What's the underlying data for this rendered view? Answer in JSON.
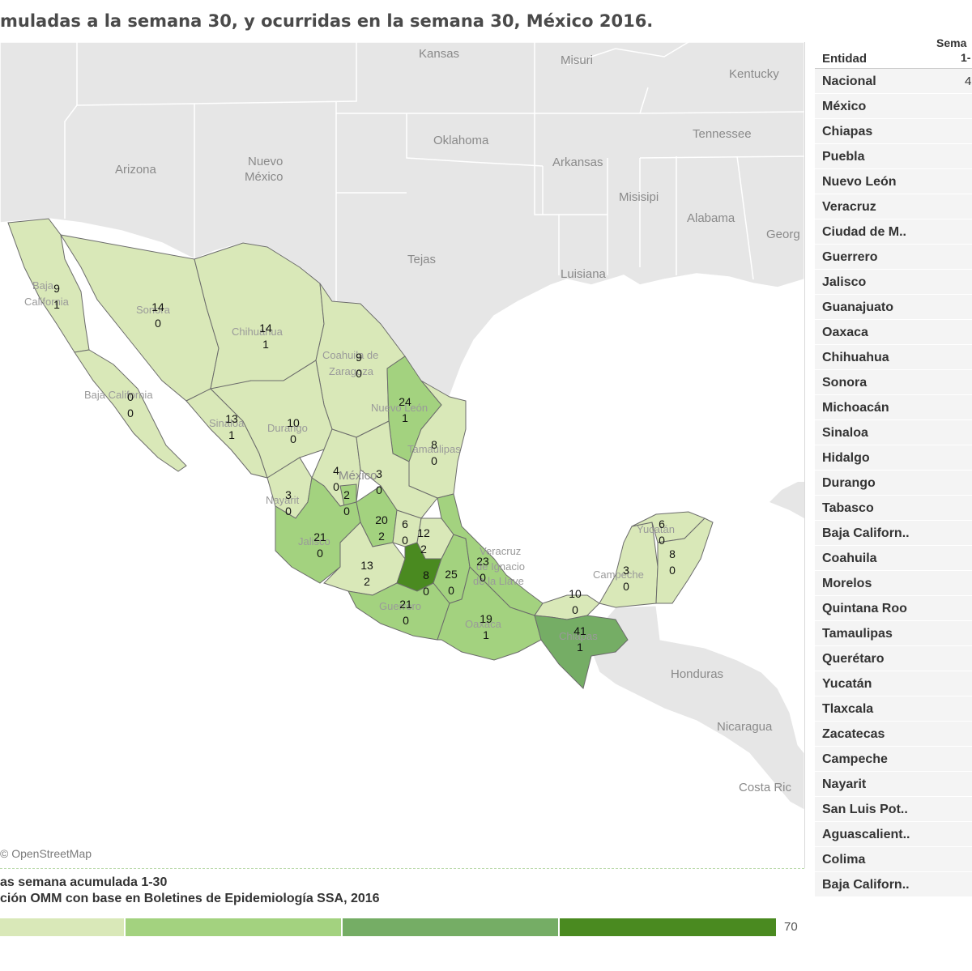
{
  "title": "muladas a la semana 30, y ocurridas en la semana 30, México 2016.",
  "map": {
    "attribution": "© OpenStreetMap",
    "country_labels": {
      "mexico": "México",
      "honduras": "Honduras",
      "nicaragua": "Nicaragua",
      "costa_rica": "Costa Ric"
    },
    "us_state_labels": {
      "kansas": "Kansas",
      "misuri": "Misuri",
      "kentucky": "Kentucky",
      "arizona": "Arizona",
      "nuevo_mexico_1": "Nuevo",
      "nuevo_mexico_2": "México",
      "oklahoma": "Oklahoma",
      "arkansas": "Arkansas",
      "tennessee": "Tennessee",
      "misisipi": "Misisipi",
      "alabama": "Alabama",
      "georgia": "Georg",
      "tejas": "Tejas",
      "luisiana": "Luisiana"
    },
    "mx_state_labels": {
      "baja_california_1": "Baja",
      "baja_california_2": "California",
      "sonora": "Sonora",
      "chihuahua": "Chihuahua",
      "coahuila_1": "Coahuila de",
      "coahuila_2": "Zaragoza",
      "nuevo_leon": "Nuevo León",
      "tamaulipas": "Tamaulipas",
      "baja_california_sur": "Baja California",
      "sinaloa": "Sinaloa",
      "durango": "Durango",
      "nayarit": "Nayarit",
      "jalisco": "Jalisco",
      "guerrero": "Guerrero",
      "oaxaca": "Oaxaca",
      "chiapas": "Chiapas",
      "veracruz_1": "Veracruz",
      "veracruz_2": "de Ignacio",
      "veracruz_3": "de la Llave",
      "yucatan": "Yucatán",
      "campeche": "Campeche"
    },
    "state_values": {
      "baja_california": [
        "9",
        "1"
      ],
      "sonora": [
        "14",
        "0"
      ],
      "chihuahua": [
        "14",
        "1"
      ],
      "coahuila": [
        "9",
        "0"
      ],
      "nuevo_leon": [
        "24",
        "1"
      ],
      "baja_california_sur": [
        "0",
        "0"
      ],
      "sinaloa": [
        "13",
        "1"
      ],
      "durango": [
        "10",
        "0"
      ],
      "tamaulipas": [
        "8",
        "0"
      ],
      "zacatecas": [
        "4",
        "0"
      ],
      "san_luis_potosi": [
        "3",
        "0"
      ],
      "nayarit": [
        "3",
        "0"
      ],
      "aguascalientes": [
        "2",
        "0"
      ],
      "guanajuato": [
        "20",
        "2"
      ],
      "queretaro": [
        "6",
        "0"
      ],
      "hidalgo": [
        "12",
        "2"
      ],
      "jalisco": [
        "21",
        "0"
      ],
      "michoacan": [
        "13",
        "2"
      ],
      "mexico": [
        "8",
        "0"
      ],
      "puebla": [
        "25",
        "0"
      ],
      "veracruz": [
        "23",
        "0"
      ],
      "guerrero": [
        "21",
        "0"
      ],
      "oaxaca": [
        "19",
        "1"
      ],
      "tabasco": [
        "10",
        "0"
      ],
      "chiapas": [
        "41",
        "1"
      ],
      "campeche": [
        "3",
        "0"
      ],
      "yucatan": [
        "6",
        "0"
      ],
      "quintana_roo": [
        "8",
        "0"
      ]
    },
    "colors": {
      "water": "#ffffff",
      "land_other": "#e6e6e6",
      "border_other": "#ffffff",
      "level1": "#d9e8b8",
      "level2": "#a3d27f",
      "level3": "#75ad65",
      "level4": "#4a8a20",
      "state_border": "#6b6b6b"
    }
  },
  "table": {
    "header_entity": "Entidad",
    "header_week_1": "Sema",
    "header_week_2": "1-",
    "rows": [
      {
        "name": "Nacional",
        "value": "4"
      },
      {
        "name": "México",
        "value": ""
      },
      {
        "name": "Chiapas",
        "value": ""
      },
      {
        "name": "Puebla",
        "value": ""
      },
      {
        "name": "Nuevo León",
        "value": ""
      },
      {
        "name": "Veracruz",
        "value": ""
      },
      {
        "name": "Ciudad de M..",
        "value": ""
      },
      {
        "name": "Guerrero",
        "value": ""
      },
      {
        "name": "Jalisco",
        "value": ""
      },
      {
        "name": "Guanajuato",
        "value": ""
      },
      {
        "name": "Oaxaca",
        "value": ""
      },
      {
        "name": "Chihuahua",
        "value": ""
      },
      {
        "name": "Sonora",
        "value": ""
      },
      {
        "name": "Michoacán",
        "value": ""
      },
      {
        "name": "Sinaloa",
        "value": ""
      },
      {
        "name": "Hidalgo",
        "value": ""
      },
      {
        "name": "Durango",
        "value": ""
      },
      {
        "name": "Tabasco",
        "value": ""
      },
      {
        "name": "Baja Californ..",
        "value": ""
      },
      {
        "name": "Coahuila",
        "value": ""
      },
      {
        "name": "Morelos",
        "value": ""
      },
      {
        "name": "Quintana Roo",
        "value": ""
      },
      {
        "name": "Tamaulipas",
        "value": ""
      },
      {
        "name": "Querétaro",
        "value": ""
      },
      {
        "name": "Yucatán",
        "value": ""
      },
      {
        "name": "Tlaxcala",
        "value": ""
      },
      {
        "name": "Zacatecas",
        "value": ""
      },
      {
        "name": "Campeche",
        "value": ""
      },
      {
        "name": "Nayarit",
        "value": ""
      },
      {
        "name": "San Luis Pot..",
        "value": ""
      },
      {
        "name": "Aguascalient..",
        "value": ""
      },
      {
        "name": "Colima",
        "value": ""
      },
      {
        "name": "Baja Californ..",
        "value": ""
      }
    ]
  },
  "legend": {
    "line1": "as semana acumulada 1-30",
    "line2": "ción OMM con base en Boletines de Epidemiología SSA, 2016",
    "max_label": "70",
    "segments": [
      "#d9e8b8",
      "#a3d27f",
      "#75ad65",
      "#4a8a20"
    ]
  }
}
